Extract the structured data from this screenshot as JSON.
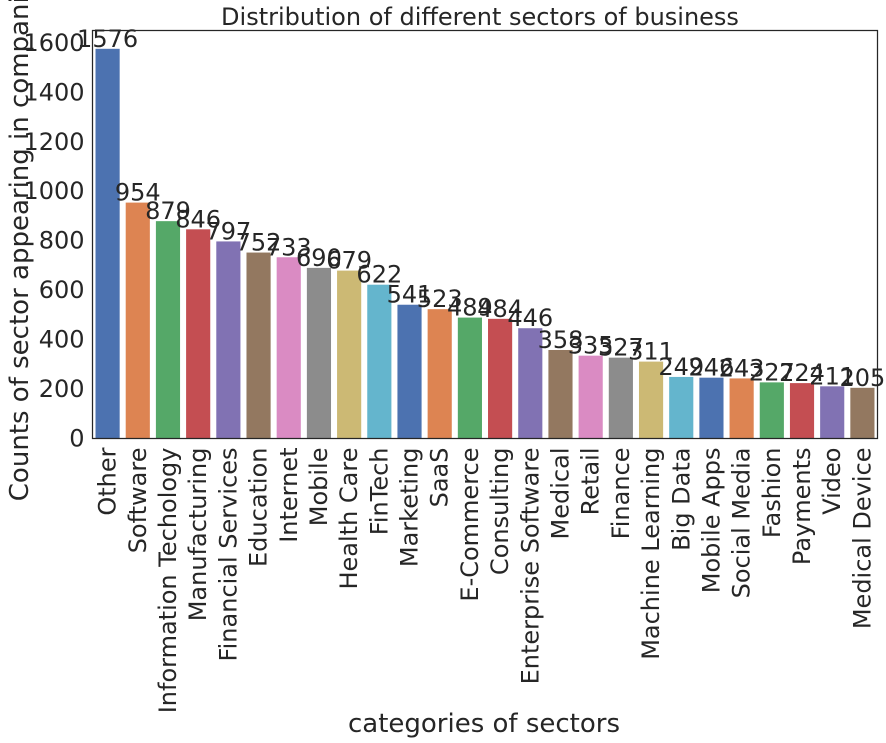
{
  "chart_data": {
    "type": "bar",
    "title": "Distribution of different sectors of business",
    "xlabel": "categories of sectors",
    "ylabel": "Counts of sector appearing in companies",
    "ylim": [
      0,
      1650
    ],
    "yticks": [
      0,
      200,
      400,
      600,
      800,
      1000,
      1200,
      1400,
      1600
    ],
    "grid": false,
    "categories": [
      "Other",
      "Software",
      "Information Techology",
      "Manufacturing",
      "Financial Services",
      "Education",
      "Internet",
      "Mobile",
      "Health Care",
      "FinTech",
      "Marketing",
      "SaaS",
      "E-Commerce",
      "Consulting",
      "Enterprise Software",
      "Medical",
      "Retail",
      "Finance",
      "Machine Learning",
      "Big Data",
      "Mobile Apps",
      "Social Media",
      "Fashion",
      "Payments",
      "Video",
      "Medical Device"
    ],
    "values": [
      1576,
      954,
      879,
      846,
      797,
      752,
      733,
      690,
      679,
      622,
      541,
      523,
      489,
      484,
      446,
      358,
      335,
      327,
      311,
      249,
      246,
      243,
      227,
      224,
      211,
      205
    ],
    "palette": [
      "#4c72b0",
      "#dd8452",
      "#55a868",
      "#c44e52",
      "#8172b3",
      "#937860",
      "#da8bc3",
      "#8c8c8c",
      "#ccb974",
      "#64b5cd"
    ]
  }
}
